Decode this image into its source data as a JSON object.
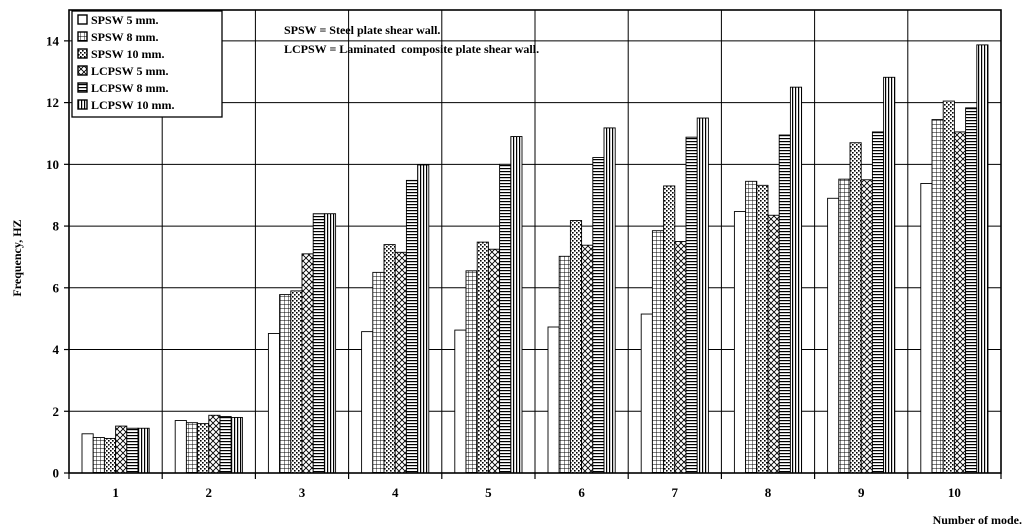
{
  "chart_data": {
    "type": "bar",
    "title": "",
    "xlabel": "Number of mode.",
    "ylabel": "Frequency, HZ",
    "ylim": [
      0,
      15
    ],
    "yticks": [
      0,
      2,
      4,
      6,
      8,
      10,
      12,
      14
    ],
    "grid": true,
    "legend_position": "top-left",
    "categories": [
      "1",
      "2",
      "3",
      "4",
      "5",
      "6",
      "7",
      "8",
      "9",
      "10"
    ],
    "series": [
      {
        "name": "SPSW 5 mm.",
        "pattern": "solid-white",
        "values": [
          1.27,
          1.7,
          4.52,
          4.58,
          4.63,
          4.73,
          5.15,
          8.47,
          8.9,
          9.38
        ]
      },
      {
        "name": "SPSW 8 mm.",
        "pattern": "grid",
        "values": [
          1.15,
          1.63,
          5.78,
          6.5,
          6.55,
          7.02,
          7.85,
          9.45,
          9.52,
          11.45
        ]
      },
      {
        "name": "SPSW 10 mm.",
        "pattern": "dots",
        "values": [
          1.12,
          1.6,
          5.9,
          7.4,
          7.48,
          8.18,
          9.3,
          9.32,
          10.7,
          12.05
        ]
      },
      {
        "name": "LCPSW 5 mm.",
        "pattern": "diagonal-hatch",
        "values": [
          1.52,
          1.87,
          7.1,
          7.15,
          7.25,
          7.38,
          7.5,
          8.35,
          9.5,
          11.05
        ]
      },
      {
        "name": "LCPSW 8 mm.",
        "pattern": "horizontal-lines",
        "values": [
          1.45,
          1.83,
          8.4,
          9.48,
          10.0,
          10.22,
          10.88,
          10.95,
          11.05,
          11.83
        ]
      },
      {
        "name": "LCPSW 10 mm.",
        "pattern": "vertical-lines",
        "values": [
          1.45,
          1.8,
          8.4,
          9.98,
          10.9,
          11.18,
          11.5,
          12.5,
          12.82,
          13.87
        ]
      }
    ],
    "annotations": [
      "SPSW = Steel plate shear wall.",
      "LCPSW = Laminated  composite plate shear wall."
    ]
  }
}
